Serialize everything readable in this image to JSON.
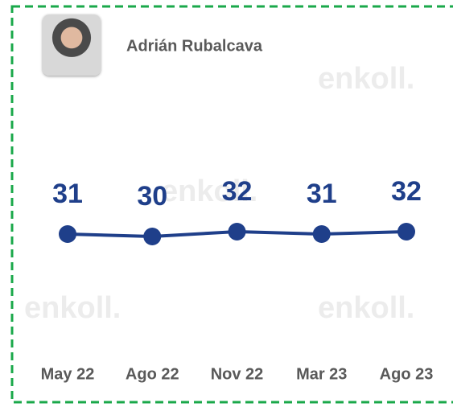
{
  "chart_data": {
    "type": "line",
    "title": "Adrián Rubalcava",
    "watermark": "enkoll.",
    "categories": [
      "May 22",
      "Ago 22",
      "Nov 22",
      "Mar 23",
      "Ago 23"
    ],
    "series": [
      {
        "name": "Adrián Rubalcava",
        "color": "#1f3f8a",
        "values": [
          31,
          30,
          32,
          31,
          32
        ]
      }
    ]
  }
}
